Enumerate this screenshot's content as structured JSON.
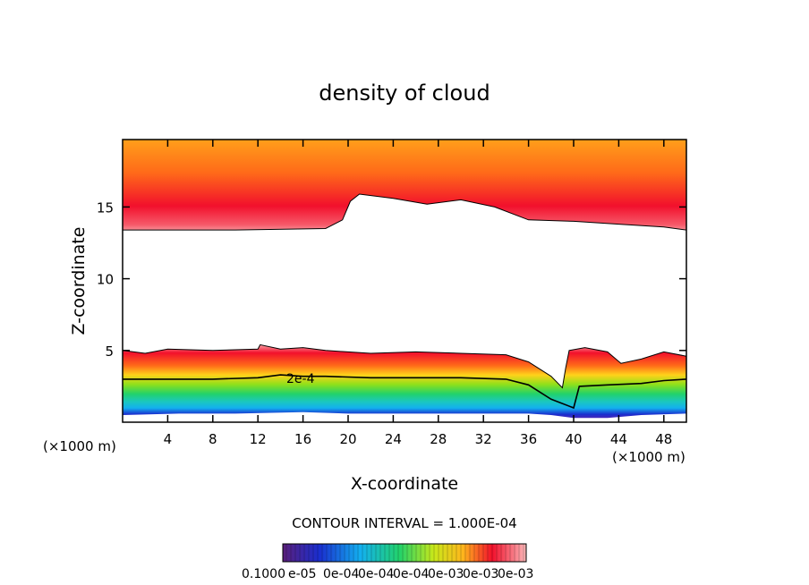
{
  "chart_data": {
    "type": "heatmap",
    "title": "density of cloud",
    "xlabel": "X-coordinate",
    "ylabel": "Z-coordinate",
    "x_unit": "(×1000 m)",
    "y_unit": "(×1000 m)",
    "xlim": [
      0,
      50
    ],
    "ylim": [
      0,
      19.7
    ],
    "x_ticks": [
      4,
      8,
      12,
      16,
      20,
      24,
      28,
      32,
      36,
      40,
      44,
      48
    ],
    "y_ticks": [
      5,
      10,
      15
    ],
    "contour_interval_text": "CONTOUR INTERVAL = 1.000E-04",
    "contour_label": "2e-4",
    "colorbar_labels": [
      "0.1000",
      "e-05",
      "0e-04",
      "0e-04",
      "0e-04",
      "0e-03",
      "0e-03",
      "0e-03"
    ],
    "colorbar_value_range": [
      1e-05,
      0.0003
    ],
    "colormap": [
      "#7a1fa0",
      "#1a2ecf",
      "#13b0ef",
      "#22d26a",
      "#5ad81f",
      "#e8ef19",
      "#ffb61c",
      "#ff6a19",
      "#f2102c",
      "#fbb7b8"
    ],
    "cloud_free_value": 0,
    "upper_layer_base_km": [
      [
        0,
        13.4
      ],
      [
        10,
        13.4
      ],
      [
        18,
        13.5
      ],
      [
        19.5,
        14.1
      ],
      [
        20.2,
        15.4
      ],
      [
        21,
        15.9
      ],
      [
        24,
        15.6
      ],
      [
        27,
        15.2
      ],
      [
        30,
        15.5
      ],
      [
        33,
        15.0
      ],
      [
        36,
        14.1
      ],
      [
        40,
        14.0
      ],
      [
        44,
        13.8
      ],
      [
        48,
        13.6
      ],
      [
        50,
        13.4
      ]
    ],
    "lower_layer_top_km": [
      [
        0,
        5.0
      ],
      [
        2,
        4.8
      ],
      [
        4,
        5.1
      ],
      [
        8,
        5.0
      ],
      [
        12,
        5.1
      ],
      [
        12.2,
        5.4
      ],
      [
        14,
        5.1
      ],
      [
        16,
        5.2
      ],
      [
        18,
        5.0
      ],
      [
        22,
        4.8
      ],
      [
        26,
        4.9
      ],
      [
        30,
        4.8
      ],
      [
        34,
        4.7
      ],
      [
        36,
        4.2
      ],
      [
        38,
        3.2
      ],
      [
        39,
        2.4
      ],
      [
        39.3,
        3.8
      ],
      [
        39.6,
        5.0
      ],
      [
        41,
        5.2
      ],
      [
        43,
        4.9
      ],
      [
        44.2,
        4.1
      ],
      [
        46,
        4.4
      ],
      [
        48,
        4.9
      ],
      [
        50,
        4.6
      ]
    ],
    "lower_layer_bottom_km": [
      [
        0,
        0.5
      ],
      [
        5,
        0.6
      ],
      [
        10,
        0.6
      ],
      [
        16,
        0.7
      ],
      [
        20,
        0.6
      ],
      [
        26,
        0.6
      ],
      [
        32,
        0.6
      ],
      [
        36,
        0.6
      ],
      [
        38,
        0.5
      ],
      [
        40,
        0.3
      ],
      [
        43,
        0.3
      ],
      [
        46,
        0.5
      ],
      [
        50,
        0.6
      ]
    ],
    "contour_2e4_km": [
      [
        0,
        3.0
      ],
      [
        4,
        3.0
      ],
      [
        8,
        3.0
      ],
      [
        12,
        3.1
      ],
      [
        14,
        3.3
      ],
      [
        16,
        3.2
      ],
      [
        18,
        3.2
      ],
      [
        22,
        3.1
      ],
      [
        26,
        3.1
      ],
      [
        30,
        3.1
      ],
      [
        34,
        3.0
      ],
      [
        36,
        2.6
      ],
      [
        38,
        1.6
      ],
      [
        40,
        1.0
      ],
      [
        40.5,
        2.5
      ],
      [
        43,
        2.6
      ],
      [
        46,
        2.7
      ],
      [
        48,
        2.9
      ],
      [
        50,
        3.0
      ]
    ]
  }
}
